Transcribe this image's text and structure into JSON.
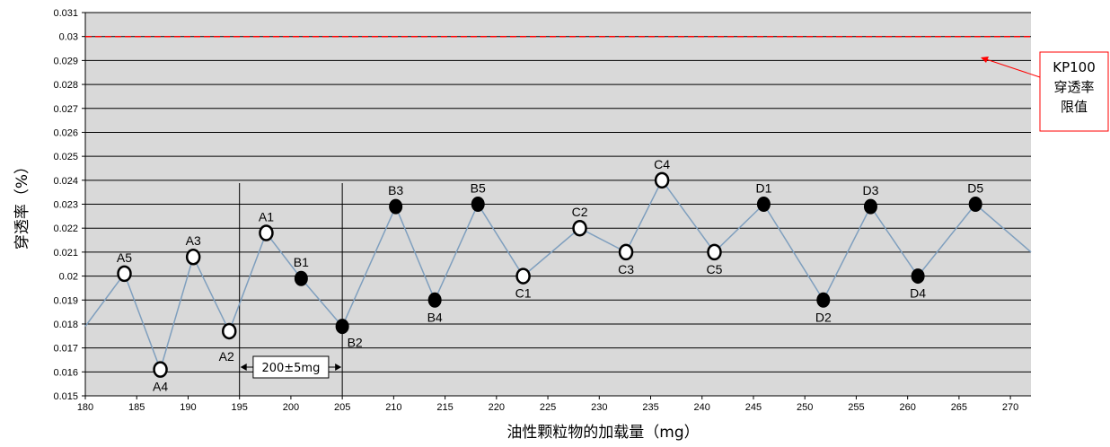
{
  "chart_data": {
    "type": "line",
    "xlabel": "油性颗粒物的加载量（mg）",
    "ylabel": "穿透率（%）",
    "xlim": [
      180,
      272
    ],
    "ylim": [
      0.015,
      0.031
    ],
    "x_ticks": [
      180,
      185,
      190,
      195,
      200,
      205,
      210,
      215,
      220,
      225,
      230,
      235,
      240,
      245,
      250,
      255,
      260,
      265,
      270
    ],
    "y_ticks": [
      "0.015",
      "0.016",
      "0.017",
      "0.018",
      "0.019",
      "0.02",
      "0.021",
      "0.022",
      "0.023",
      "0.024",
      "0.025",
      "0.026",
      "0.027",
      "0.028",
      "0.029",
      "0.03",
      "0.031"
    ],
    "grid": true,
    "series": [
      {
        "points": [
          {
            "x": 180.0,
            "y": 0.0179,
            "label": ""
          },
          {
            "x": 183.8,
            "y": 0.0201,
            "label": "A5",
            "marker": "open",
            "label_pos": "above"
          },
          {
            "x": 187.3,
            "y": 0.0161,
            "label": "A4",
            "marker": "open",
            "label_pos": "below"
          },
          {
            "x": 190.5,
            "y": 0.0208,
            "label": "A3",
            "marker": "open",
            "label_pos": "above"
          },
          {
            "x": 194.0,
            "y": 0.0177,
            "label": "A2",
            "marker": "open",
            "label_pos": "belowleft"
          },
          {
            "x": 197.6,
            "y": 0.0218,
            "label": "A1",
            "marker": "open",
            "label_pos": "above"
          },
          {
            "x": 201.0,
            "y": 0.0199,
            "label": "B1",
            "marker": "filled",
            "label_pos": "above"
          },
          {
            "x": 205.0,
            "y": 0.0179,
            "label": "B2",
            "marker": "filled",
            "label_pos": "belowright"
          },
          {
            "x": 210.2,
            "y": 0.0229,
            "label": "B3",
            "marker": "filled",
            "label_pos": "above"
          },
          {
            "x": 214.0,
            "y": 0.019,
            "label": "B4",
            "marker": "filled",
            "label_pos": "below"
          },
          {
            "x": 218.2,
            "y": 0.023,
            "label": "B5",
            "marker": "filled",
            "label_pos": "above"
          },
          {
            "x": 222.6,
            "y": 0.02,
            "label": "C1",
            "marker": "open",
            "label_pos": "below"
          },
          {
            "x": 228.1,
            "y": 0.022,
            "label": "C2",
            "marker": "open",
            "label_pos": "above"
          },
          {
            "x": 232.6,
            "y": 0.021,
            "label": "C3",
            "marker": "open",
            "label_pos": "below"
          },
          {
            "x": 236.1,
            "y": 0.024,
            "label": "C4",
            "marker": "open",
            "label_pos": "above"
          },
          {
            "x": 241.2,
            "y": 0.021,
            "label": "C5",
            "marker": "open",
            "label_pos": "below"
          },
          {
            "x": 246.0,
            "y": 0.023,
            "label": "D1",
            "marker": "filled",
            "label_pos": "above"
          },
          {
            "x": 251.8,
            "y": 0.019,
            "label": "D2",
            "marker": "filled",
            "label_pos": "below"
          },
          {
            "x": 256.4,
            "y": 0.0229,
            "label": "D3",
            "marker": "filled",
            "label_pos": "above"
          },
          {
            "x": 261.0,
            "y": 0.02,
            "label": "D4",
            "marker": "filled",
            "label_pos": "below"
          },
          {
            "x": 266.6,
            "y": 0.023,
            "label": "D5",
            "marker": "filled",
            "label_pos": "above"
          },
          {
            "x": 272.0,
            "y": 0.021,
            "label": ""
          }
        ]
      }
    ],
    "limit_line": {
      "y": 0.03,
      "color": "#ff0000",
      "style": "dashed"
    },
    "callout": {
      "lines": [
        "KP100",
        "穿透率",
        "限值"
      ]
    },
    "range_annotation": {
      "x_start": 195,
      "x_end": 205,
      "text": "200±5mg"
    },
    "colors": {
      "plot_bg": "#d9d9d9",
      "grid": "#000000",
      "line": "#7f9fbe",
      "limit": "#ff0000"
    }
  }
}
